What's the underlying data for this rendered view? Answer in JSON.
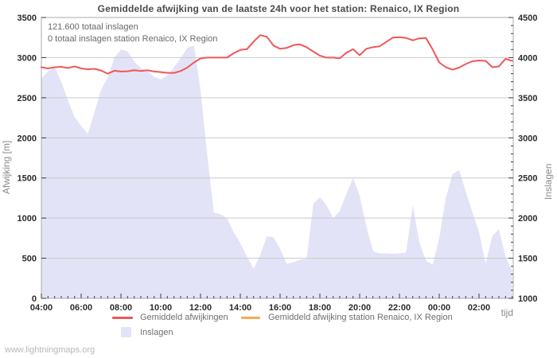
{
  "title": "Gemiddelde afwijking van de laatste 24h voor het station: Renaico, IX Region",
  "annotation": {
    "total": "121.600 totaal inslagen",
    "station_total": "0 totaal inslagen station Renaico, IX Region"
  },
  "watermark": "www.lightningmaps.org",
  "axes": {
    "left": {
      "label": "Afwijking [m]",
      "tick_values": [
        0,
        500,
        1000,
        1500,
        2000,
        2500,
        3000,
        3500
      ],
      "tick_labels": [
        "0",
        "500",
        "1000",
        "1500",
        "2000",
        "2500",
        "3000",
        "3500"
      ]
    },
    "right": {
      "label": "Inslagen",
      "tick_values": [
        1000,
        1500,
        2000,
        2500,
        3000,
        3500,
        4000,
        4500
      ],
      "tick_labels": [
        "1000",
        "1500",
        "2000",
        "2500",
        "3000",
        "3500",
        "4000",
        "4500"
      ],
      "minor_step": 100
    },
    "x": {
      "label": "tijd",
      "tick_hours": [
        4,
        6,
        8,
        10,
        12,
        14,
        16,
        18,
        20,
        22,
        24,
        26
      ],
      "tick_labels": [
        "04:00",
        "06:00",
        "08:00",
        "10:00",
        "12:00",
        "14:00",
        "16:00",
        "18:00",
        "20:00",
        "22:00",
        "00:00",
        "02:00"
      ],
      "minor_step_hours": 0.3333
    }
  },
  "legend": [
    {
      "label": "Gemiddeld afwijkingen",
      "swatch": "line",
      "color": "#f15757"
    },
    {
      "label": "Gemiddeld afwijking station Renaico, IX Region",
      "swatch": "line",
      "color": "#f9a959"
    },
    {
      "label": "Inslagen",
      "swatch": "box",
      "color": "#e3e3f7"
    }
  ],
  "colors": {
    "grid": "#c9c9c9",
    "border": "#ababab",
    "tick": "#3c3c3c",
    "deviation_line": "#f15757",
    "station_line": "#f9a959",
    "strikes_fill": "#e3e3f7"
  },
  "chart_data": {
    "type": "line+area",
    "x_domain": [
      4,
      27.72
    ],
    "left_ylim": [
      0,
      3500
    ],
    "right_ylim": [
      1000,
      4500
    ],
    "grid": true,
    "legend_position": "bottom",
    "x_hours": [
      4,
      4.33,
      4.67,
      5,
      5.33,
      5.67,
      6,
      6.33,
      6.67,
      7,
      7.33,
      7.67,
      8,
      8.33,
      8.67,
      9,
      9.33,
      9.67,
      10,
      10.33,
      10.67,
      11,
      11.33,
      11.67,
      12,
      12.33,
      12.67,
      13,
      13.33,
      13.67,
      14,
      14.33,
      14.67,
      15,
      15.33,
      15.67,
      16,
      16.33,
      16.67,
      17,
      17.33,
      17.67,
      18,
      18.33,
      18.67,
      19,
      19.33,
      19.67,
      20,
      20.33,
      20.67,
      21,
      21.33,
      21.67,
      22,
      22.33,
      22.67,
      23,
      23.33,
      23.67,
      24,
      24.33,
      24.67,
      25,
      25.33,
      25.67,
      26,
      26.33,
      26.67,
      27,
      27.33,
      27.67
    ],
    "series": [
      {
        "name": "Gemiddeld afwijkingen",
        "kind": "line",
        "axis": "left",
        "color": "#f15757",
        "values": [
          2880,
          2865,
          2880,
          2885,
          2870,
          2890,
          2865,
          2855,
          2860,
          2840,
          2800,
          2837,
          2827,
          2830,
          2843,
          2833,
          2843,
          2827,
          2820,
          2810,
          2810,
          2833,
          2875,
          2940,
          2990,
          3000,
          3000,
          3000,
          3000,
          3055,
          3095,
          3105,
          3200,
          3280,
          3260,
          3150,
          3110,
          3120,
          3155,
          3165,
          3130,
          3075,
          3025,
          3000,
          3000,
          2990,
          3060,
          3105,
          3030,
          3110,
          3130,
          3140,
          3195,
          3250,
          3255,
          3245,
          3215,
          3240,
          3245,
          3100,
          2940,
          2880,
          2850,
          2875,
          2920,
          2955,
          2965,
          2960,
          2880,
          2890,
          2985,
          2960
        ]
      },
      {
        "name": "Gemiddeld afwijking station Renaico, IX Region",
        "kind": "line",
        "axis": "left",
        "color": "#f9a959",
        "values": []
      },
      {
        "name": "Inslagen",
        "kind": "area",
        "axis": "right",
        "color": "#e3e3f7",
        "values": [
          3740,
          3830,
          3880,
          3700,
          3470,
          3260,
          3150,
          3050,
          3320,
          3600,
          3750,
          4000,
          4100,
          4080,
          3950,
          3870,
          3830,
          3760,
          3730,
          3780,
          3880,
          3990,
          4120,
          4150,
          3600,
          2800,
          2070,
          2050,
          2000,
          1820,
          1690,
          1520,
          1370,
          1540,
          1770,
          1760,
          1620,
          1430,
          1450,
          1480,
          1495,
          2180,
          2260,
          2160,
          2000,
          2090,
          2300,
          2500,
          2280,
          1900,
          1590,
          1560,
          1560,
          1555,
          1560,
          1570,
          2160,
          1700,
          1470,
          1420,
          1750,
          2250,
          2550,
          2600,
          2330,
          2070,
          1830,
          1430,
          1780,
          1860,
          1520,
          1340
        ]
      }
    ]
  }
}
